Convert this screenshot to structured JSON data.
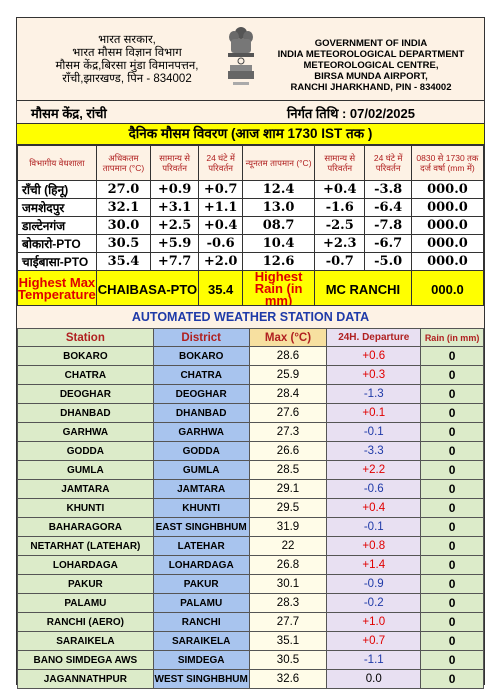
{
  "header": {
    "hindi_lines": [
      "भारत सरकार,",
      "भारत मौसम विज्ञान विभाग",
      "मौसम केंद्र,बिरसा मुंडा विमानपत्तन,",
      "राँची,झारखण्ड, पिन - 834002"
    ],
    "english_lines": [
      "GOVERNMENT OF INDIA",
      "INDIA METEOROLOGICAL DEPARTMENT",
      "METEOROLOGICAL CENTRE,",
      "BIRSA MUNDA AIRPORT,",
      "RANCHI JHARKHAND, PIN - 834002"
    ],
    "emblem_icon": "ashoka-emblem-icon"
  },
  "station": {
    "left": "मौसम केंद्र, रांची",
    "right": "निर्गत तिथि : 07/02/2025"
  },
  "title": "दैनिक मौसम विवरण (आज शाम 1730 IST तक )",
  "summary": {
    "headers": [
      "विभागीय वेधशाला",
      "अधिकतम तापमान (°C)",
      "सामान्य से परिवर्तन",
      "24 घंटे में परिवर्तन",
      "न्यूनतम तापमान (°C)",
      "सामान्य से परिवर्तन",
      "24 घंटे में परिवर्तन",
      "0830 से 1730 तक दर्ज वर्षा (mm में)"
    ],
    "rows": [
      {
        "name": "राँची (हिनू)",
        "max": "27.0",
        "max_norm": "+0.9",
        "max_24": "+0.7",
        "min": "12.4",
        "min_norm": "+0.4",
        "min_24": "-3.8",
        "rain": "000.0"
      },
      {
        "name": "जमशेदपुर",
        "max": "32.1",
        "max_norm": "+3.1",
        "max_24": "+1.1",
        "min": "13.0",
        "min_norm": "-1.6",
        "min_24": "-6.4",
        "rain": "000.0"
      },
      {
        "name": "डाल्टेनगंज",
        "max": "30.0",
        "max_norm": "+2.5",
        "max_24": "+0.4",
        "min": "08.7",
        "min_norm": "-2.5",
        "min_24": "-7.8",
        "rain": "000.0"
      },
      {
        "name": "बोकारो-PTO",
        "max": "30.5",
        "max_norm": "+5.9",
        "max_24": "-0.6",
        "min": "10.4",
        "min_norm": "+2.3",
        "min_24": "-6.7",
        "rain": "000.0"
      },
      {
        "name": "चाईबासा-PTO",
        "max": "35.4",
        "max_norm": "+7.7",
        "max_24": "+2.0",
        "min": "12.6",
        "min_norm": "-0.7",
        "min_24": "-5.0",
        "rain": "000.0"
      }
    ],
    "highest": {
      "max_label": "Highest Max Temperature",
      "max_station": "CHAIBASA-PTO",
      "max_value": "35.4",
      "rain_label": "Highest Rain (in mm)",
      "rain_station": "MC RANCHI",
      "rain_value": "000.0"
    }
  },
  "aws": {
    "title": "AUTOMATED WEATHER STATION DATA",
    "headers": [
      "Station",
      "District",
      "Max (°C)",
      "24H. Departure",
      "Rain (in mm)"
    ],
    "rows": [
      {
        "station": "BOKARO",
        "district": "BOKARO",
        "max": "28.6",
        "dep": "+0.6",
        "rain": "0",
        "sign": "pos"
      },
      {
        "station": "CHATRA",
        "district": "CHATRA",
        "max": "25.9",
        "dep": "+0.3",
        "rain": "0",
        "sign": "pos"
      },
      {
        "station": "DEOGHAR",
        "district": "DEOGHAR",
        "max": "28.4",
        "dep": "-1.3",
        "rain": "0",
        "sign": "neg"
      },
      {
        "station": "DHANBAD",
        "district": "DHANBAD",
        "max": "27.6",
        "dep": "+0.1",
        "rain": "0",
        "sign": "pos"
      },
      {
        "station": "GARHWA",
        "district": "GARHWA",
        "max": "27.3",
        "dep": "-0.1",
        "rain": "0",
        "sign": "neg"
      },
      {
        "station": "GODDA",
        "district": "GODDA",
        "max": "26.6",
        "dep": "-3.3",
        "rain": "0",
        "sign": "neg"
      },
      {
        "station": "GUMLA",
        "district": "GUMLA",
        "max": "28.5",
        "dep": "+2.2",
        "rain": "0",
        "sign": "pos"
      },
      {
        "station": "JAMTARA",
        "district": "JAMTARA",
        "max": "29.1",
        "dep": "-0.6",
        "rain": "0",
        "sign": "neg"
      },
      {
        "station": "KHUNTI",
        "district": "KHUNTI",
        "max": "29.5",
        "dep": "+0.4",
        "rain": "0",
        "sign": "pos"
      },
      {
        "station": "BAHARAGORA",
        "district": "EAST SINGHBHUM",
        "max": "31.9",
        "dep": "-0.1",
        "rain": "0",
        "sign": "neg"
      },
      {
        "station": "NETARHAT (LATEHAR)",
        "district": "LATEHAR",
        "max": "22",
        "dep": "+0.8",
        "rain": "0",
        "sign": "pos"
      },
      {
        "station": "LOHARDAGA",
        "district": "LOHARDAGA",
        "max": "26.8",
        "dep": "+1.4",
        "rain": "0",
        "sign": "pos"
      },
      {
        "station": "PAKUR",
        "district": "PAKUR",
        "max": "30.1",
        "dep": "-0.9",
        "rain": "0",
        "sign": "neg"
      },
      {
        "station": "PALAMU",
        "district": "PALAMU",
        "max": "28.3",
        "dep": "-0.2",
        "rain": "0",
        "sign": "neg"
      },
      {
        "station": "RANCHI (AERO)",
        "district": "RANCHI",
        "max": "27.7",
        "dep": "+1.0",
        "rain": "0",
        "sign": "pos"
      },
      {
        "station": "SARAIKELA",
        "district": "SARAIKELA",
        "max": "35.1",
        "dep": "+0.7",
        "rain": "0",
        "sign": "pos"
      },
      {
        "station": "BANO SIMDEGA AWS",
        "district": "SIMDEGA",
        "max": "30.5",
        "dep": "-1.1",
        "rain": "0",
        "sign": "neg"
      },
      {
        "station": "JAGANNATHPUR",
        "district": "WEST SINGHBHUM",
        "max": "32.6",
        "dep": "0.0",
        "rain": "0",
        "sign": "zero"
      }
    ]
  }
}
